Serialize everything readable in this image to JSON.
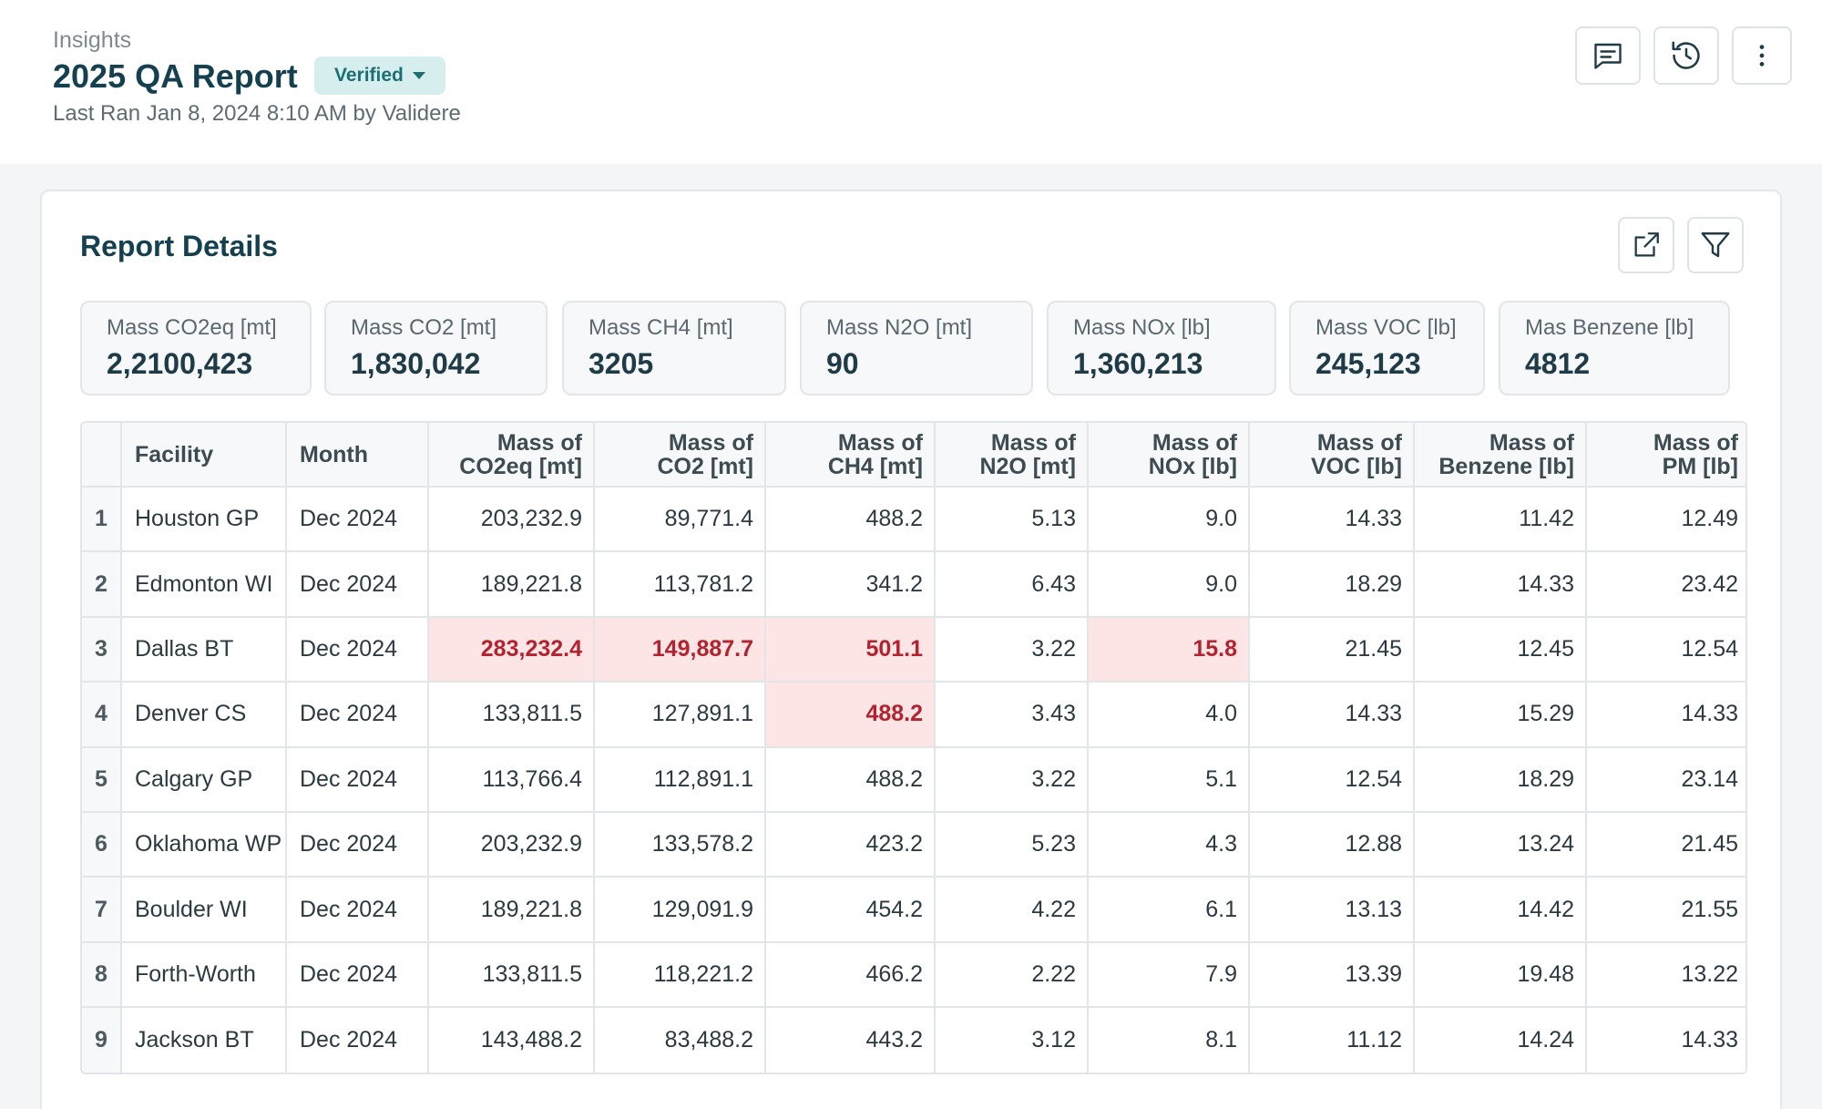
{
  "header": {
    "breadcrumb": "Insights",
    "title": "2025 QA Report",
    "status_badge": "Verified",
    "subtitle": "Last Ran Jan 8, 2024 8:10 AM by Validere",
    "actions": [
      "comment-icon",
      "history-icon",
      "more-vertical-icon"
    ]
  },
  "report": {
    "title": "Report Details",
    "actions": [
      "external-link-icon",
      "filter-icon"
    ],
    "stats": [
      {
        "label": "Mass CO2eq [mt]",
        "value": "2,2100,423"
      },
      {
        "label": "Mass CO2 [mt]",
        "value": "1,830,042"
      },
      {
        "label": "Mass CH4 [mt]",
        "value": "3205"
      },
      {
        "label": "Mass N2O [mt]",
        "value": "90"
      },
      {
        "label": "Mass NOx [lb]",
        "value": "1,360,213"
      },
      {
        "label": "Mass VOC [lb]",
        "value": "245,123"
      },
      {
        "label": "Mas Benzene [lb]",
        "value": "4812"
      }
    ],
    "table": {
      "columns": [
        {
          "l1": "",
          "l2": "Facility"
        },
        {
          "l1": "",
          "l2": "Month"
        },
        {
          "l1": "Mass of",
          "l2": "CO2eq [mt]"
        },
        {
          "l1": "Mass of",
          "l2": "CO2 [mt]"
        },
        {
          "l1": "Mass of",
          "l2": "CH4 [mt]"
        },
        {
          "l1": "Mass of",
          "l2": "N2O [mt]"
        },
        {
          "l1": "Mass of",
          "l2": "NOx [lb]"
        },
        {
          "l1": "Mass of",
          "l2": "VOC [lb]"
        },
        {
          "l1": "Mass of",
          "l2": "Benzene [lb]"
        },
        {
          "l1": "Mass of",
          "l2": "PM [lb]"
        }
      ],
      "rows": [
        {
          "idx": "1",
          "cells": [
            "Houston GP",
            "Dec 2024",
            "203,232.9",
            "89,771.4",
            "488.2",
            "5.13",
            "9.0",
            "14.33",
            "11.42",
            "12.49"
          ],
          "highlight": []
        },
        {
          "idx": "2",
          "cells": [
            "Edmonton WI",
            "Dec 2024",
            "189,221.8",
            "113,781.2",
            "341.2",
            "6.43",
            "9.0",
            "18.29",
            "14.33",
            "23.42"
          ],
          "highlight": []
        },
        {
          "idx": "3",
          "cells": [
            "Dallas BT",
            "Dec 2024",
            "283,232.4",
            "149,887.7",
            "501.1",
            "3.22",
            "15.8",
            "21.45",
            "12.45",
            "12.54"
          ],
          "highlight": [
            2,
            3,
            4,
            6
          ]
        },
        {
          "idx": "4",
          "cells": [
            "Denver CS",
            "Dec 2024",
            "133,811.5",
            "127,891.1",
            "488.2",
            "3.43",
            "4.0",
            "14.33",
            "15.29",
            "14.33"
          ],
          "highlight": [
            4
          ]
        },
        {
          "idx": "5",
          "cells": [
            "Calgary GP",
            "Dec 2024",
            "113,766.4",
            "112,891.1",
            "488.2",
            "3.22",
            "5.1",
            "12.54",
            "18.29",
            "23.14"
          ],
          "highlight": []
        },
        {
          "idx": "6",
          "cells": [
            "Oklahoma WP",
            "Dec 2024",
            "203,232.9",
            "133,578.2",
            "423.2",
            "5.23",
            "4.3",
            "12.88",
            "13.24",
            "21.45"
          ],
          "highlight": []
        },
        {
          "idx": "7",
          "cells": [
            "Boulder WI",
            "Dec 2024",
            "189,221.8",
            "129,091.9",
            "454.2",
            "4.22",
            "6.1",
            "13.13",
            "14.42",
            "21.55"
          ],
          "highlight": []
        },
        {
          "idx": "8",
          "cells": [
            "Forth-Worth",
            "Dec 2024",
            "133,811.5",
            "118,221.2",
            "466.2",
            "2.22",
            "7.9",
            "13.39",
            "19.48",
            "13.22"
          ],
          "highlight": []
        },
        {
          "idx": "9",
          "cells": [
            "Jackson BT",
            "Dec 2024",
            "143,488.2",
            "83,488.2",
            "443.2",
            "3.12",
            "8.1",
            "11.12",
            "14.24",
            "14.33"
          ],
          "highlight": []
        }
      ]
    }
  }
}
